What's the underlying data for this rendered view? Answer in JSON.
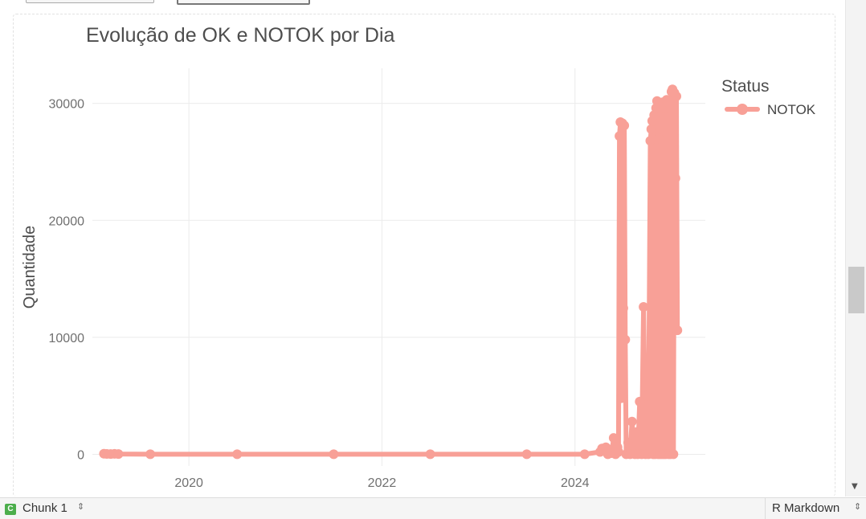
{
  "chart_data": {
    "type": "line",
    "title": "Evolução de OK e NOTOK por Dia",
    "xlabel": "",
    "ylabel": "Quantidade",
    "xlim": [
      2019.0,
      2025.35
    ],
    "ylim": [
      -1000,
      33000
    ],
    "x_ticks": [
      {
        "value": 2020,
        "label": "2020"
      },
      {
        "value": 2022,
        "label": "2022"
      },
      {
        "value": 2024,
        "label": "2024"
      }
    ],
    "y_ticks": [
      {
        "value": 0,
        "label": "0"
      },
      {
        "value": 10000,
        "label": "10000"
      },
      {
        "value": 20000,
        "label": "20000"
      },
      {
        "value": 30000,
        "label": "30000"
      }
    ],
    "grid": true,
    "legend": {
      "title": "Status",
      "placement": "top-right"
    },
    "series": [
      {
        "name": "NOTOK",
        "color": "#f8a097",
        "points": [
          [
            2019.12,
            50
          ],
          [
            2019.15,
            30
          ],
          [
            2019.19,
            20
          ],
          [
            2019.23,
            40
          ],
          [
            2019.27,
            20
          ],
          [
            2019.6,
            0
          ],
          [
            2020.5,
            0
          ],
          [
            2021.5,
            0
          ],
          [
            2022.5,
            0
          ],
          [
            2023.5,
            0
          ],
          [
            2024.1,
            0
          ],
          [
            2024.26,
            200
          ],
          [
            2024.28,
            500
          ],
          [
            2024.3,
            300
          ],
          [
            2024.32,
            600
          ],
          [
            2024.34,
            0
          ],
          [
            2024.36,
            400
          ],
          [
            2024.38,
            100
          ],
          [
            2024.4,
            1400
          ],
          [
            2024.42,
            0
          ],
          [
            2024.44,
            600
          ],
          [
            2024.45,
            200
          ],
          [
            2024.46,
            27200
          ],
          [
            2024.47,
            28400
          ],
          [
            2024.48,
            4800
          ],
          [
            2024.49,
            28300
          ],
          [
            2024.5,
            12500
          ],
          [
            2024.51,
            28100
          ],
          [
            2024.52,
            9800
          ],
          [
            2024.53,
            0
          ],
          [
            2024.55,
            1000
          ],
          [
            2024.57,
            0
          ],
          [
            2024.59,
            2800
          ],
          [
            2024.62,
            0
          ],
          [
            2024.64,
            1900
          ],
          [
            2024.65,
            0
          ],
          [
            2024.67,
            4500
          ],
          [
            2024.69,
            0
          ],
          [
            2024.71,
            12600
          ],
          [
            2024.73,
            0
          ],
          [
            2024.75,
            5000
          ],
          [
            2024.76,
            0
          ],
          [
            2024.78,
            26800
          ],
          [
            2024.79,
            27800
          ],
          [
            2024.8,
            28500
          ],
          [
            2024.81,
            0
          ],
          [
            2024.82,
            29000
          ],
          [
            2024.83,
            0
          ],
          [
            2024.84,
            29600
          ],
          [
            2024.85,
            30200
          ],
          [
            2024.86,
            0
          ],
          [
            2024.87,
            27000
          ],
          [
            2024.88,
            0
          ],
          [
            2024.89,
            30000
          ],
          [
            2024.9,
            0
          ],
          [
            2024.91,
            30100
          ],
          [
            2024.92,
            0
          ],
          [
            2024.93,
            29600
          ],
          [
            2024.94,
            0
          ],
          [
            2024.95,
            30300
          ],
          [
            2024.97,
            0
          ],
          [
            2024.98,
            30000
          ],
          [
            2024.99,
            0
          ],
          [
            2025.0,
            31000
          ],
          [
            2025.01,
            31200
          ],
          [
            2025.02,
            0
          ],
          [
            2025.03,
            30900
          ],
          [
            2025.04,
            23600
          ],
          [
            2025.05,
            30600
          ],
          [
            2025.06,
            10600
          ]
        ]
      }
    ]
  },
  "top_buttons": [
    "",
    ""
  ],
  "statusbar": {
    "chunk_icon": "C",
    "chunk_label": "Chunk 1",
    "doc_type": "R Markdown"
  }
}
